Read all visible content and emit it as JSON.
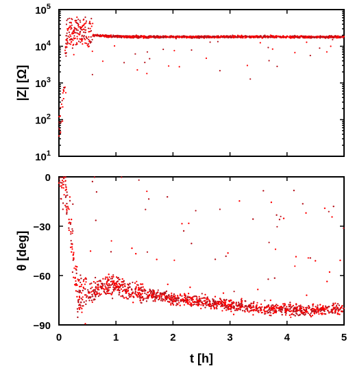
{
  "chart_data": [
    {
      "type": "scatter",
      "ylabel": "|Z| [Ω]",
      "yscale": "log",
      "ylim": [
        10,
        100000
      ],
      "xlim": [
        0,
        5
      ],
      "y_tick_labels": [
        {
          "base": "10",
          "exp": "1"
        },
        {
          "base": "10",
          "exp": "2"
        },
        {
          "base": "10",
          "exp": "3"
        },
        {
          "base": "10",
          "exp": "4"
        },
        {
          "base": "10",
          "exp": "5"
        }
      ],
      "y_ticks": [
        10,
        100,
        1000,
        10000,
        100000
      ],
      "grid": false,
      "series": [
        {
          "color": "#ff0000",
          "marker_color": "#b5121b",
          "x": [
            0.0,
            0.02,
            0.05,
            0.08,
            0.1,
            0.12,
            0.15,
            0.18,
            0.2,
            0.25,
            0.3,
            0.35,
            0.4,
            0.45,
            0.5,
            0.6,
            0.8,
            1.0,
            1.5,
            2.0,
            2.5,
            3.0,
            3.5,
            4.0,
            4.5,
            5.0
          ],
          "y": [
            60,
            80,
            150,
            400,
            1500,
            8000,
            20000,
            24000,
            25000,
            26000,
            26000,
            25000,
            24000,
            23000,
            22000,
            20000,
            19000,
            18500,
            18000,
            18000,
            18000,
            18000,
            18000,
            18000,
            18000,
            18000
          ]
        }
      ]
    },
    {
      "type": "scatter",
      "xlabel": "t [h]",
      "ylabel": "θ [deg]",
      "xlim": [
        0,
        5
      ],
      "ylim": [
        -90,
        0
      ],
      "x_ticks": [
        "0",
        "1",
        "2",
        "3",
        "4",
        "5"
      ],
      "y_ticks": [
        "0",
        "-30",
        "-60",
        "-90"
      ],
      "grid": false,
      "series": [
        {
          "color": "#ff0000",
          "marker_color": "#b5121b",
          "x": [
            0.0,
            0.1,
            0.2,
            0.3,
            0.4,
            0.5,
            0.6,
            0.8,
            1.0,
            1.2,
            1.5,
            2.0,
            2.5,
            3.0,
            3.5,
            4.0,
            4.5,
            5.0
          ],
          "y": [
            0,
            -5,
            -30,
            -65,
            -75,
            -72,
            -70,
            -66,
            -66,
            -68,
            -71,
            -74,
            -76,
            -78,
            -80,
            -81,
            -81,
            -80
          ]
        }
      ]
    }
  ]
}
